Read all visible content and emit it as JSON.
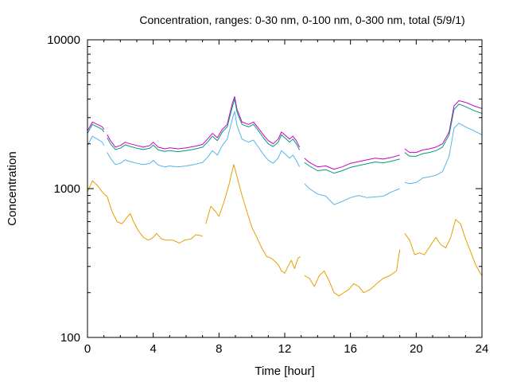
{
  "chart_data": {
    "type": "line",
    "title": "Concentration, ranges: 0-30 nm, 0-100 nm, 0-300 nm, total (5/9/1)",
    "xlabel": "Time [hour]",
    "ylabel": "Concentration",
    "xlim": [
      0,
      24
    ],
    "ylim": [
      100,
      10000
    ],
    "yscale": "log",
    "grid": false,
    "legend": "none",
    "x_ticks": [
      "0",
      "4",
      "8",
      "12",
      "16",
      "20",
      "24"
    ],
    "y_ticks": [
      "100",
      "1000",
      "10000"
    ],
    "series": [
      {
        "color": "#cc00cc",
        "points": [
          [
            0,
            2450
          ],
          [
            0.3,
            2800
          ],
          [
            0.6,
            2700
          ],
          [
            0.9,
            2600
          ],
          [
            1.0,
            2500
          ],
          [
            null,
            null
          ],
          [
            1.2,
            2300
          ],
          [
            1.4,
            2100
          ],
          [
            1.7,
            1900
          ],
          [
            2.0,
            1950
          ],
          [
            2.3,
            2050
          ],
          [
            2.6,
            2000
          ],
          [
            3.0,
            1950
          ],
          [
            3.4,
            1900
          ],
          [
            3.8,
            1950
          ],
          [
            4.0,
            2050
          ],
          [
            4.3,
            1900
          ],
          [
            4.7,
            1850
          ],
          [
            5.0,
            1880
          ],
          [
            5.5,
            1850
          ],
          [
            6.0,
            1880
          ],
          [
            6.5,
            1920
          ],
          [
            7.0,
            1980
          ],
          [
            7.3,
            2150
          ],
          [
            7.6,
            2350
          ],
          [
            7.9,
            2200
          ],
          [
            8.2,
            2500
          ],
          [
            8.5,
            2700
          ],
          [
            8.8,
            3700
          ],
          [
            8.95,
            4150
          ],
          [
            9.1,
            3400
          ],
          [
            9.4,
            2800
          ],
          [
            9.8,
            2700
          ],
          [
            10.1,
            2800
          ],
          [
            10.4,
            2550
          ],
          [
            10.7,
            2300
          ],
          [
            11.0,
            2100
          ],
          [
            11.3,
            2000
          ],
          [
            11.6,
            2150
          ],
          [
            11.8,
            2400
          ],
          [
            12.0,
            2300
          ],
          [
            12.3,
            2150
          ],
          [
            12.5,
            2250
          ],
          [
            12.7,
            2100
          ],
          [
            12.9,
            1900
          ],
          [
            null,
            null
          ],
          [
            13.2,
            1600
          ],
          [
            13.5,
            1500
          ],
          [
            14.0,
            1400
          ],
          [
            14.5,
            1420
          ],
          [
            15.0,
            1350
          ],
          [
            15.5,
            1400
          ],
          [
            16.0,
            1480
          ],
          [
            16.5,
            1520
          ],
          [
            17.0,
            1560
          ],
          [
            17.5,
            1600
          ],
          [
            18.0,
            1580
          ],
          [
            18.5,
            1620
          ],
          [
            19.0,
            1680
          ],
          [
            null,
            null
          ],
          [
            19.3,
            1850
          ],
          [
            19.6,
            1750
          ],
          [
            20.0,
            1750
          ],
          [
            20.4,
            1820
          ],
          [
            20.8,
            1850
          ],
          [
            21.2,
            1900
          ],
          [
            21.6,
            2000
          ],
          [
            22.0,
            2400
          ],
          [
            22.3,
            3600
          ],
          [
            22.6,
            3900
          ],
          [
            23.0,
            3800
          ],
          [
            23.5,
            3600
          ],
          [
            24.0,
            3450
          ]
        ]
      },
      {
        "color": "#009e73",
        "points": [
          [
            0,
            2350
          ],
          [
            0.3,
            2700
          ],
          [
            0.6,
            2600
          ],
          [
            0.9,
            2500
          ],
          [
            1.0,
            2400
          ],
          [
            null,
            null
          ],
          [
            1.2,
            2200
          ],
          [
            1.4,
            2000
          ],
          [
            1.7,
            1830
          ],
          [
            2.0,
            1870
          ],
          [
            2.3,
            1970
          ],
          [
            2.6,
            1920
          ],
          [
            3.0,
            1870
          ],
          [
            3.4,
            1830
          ],
          [
            3.8,
            1870
          ],
          [
            4.0,
            1960
          ],
          [
            4.3,
            1820
          ],
          [
            4.7,
            1780
          ],
          [
            5.0,
            1800
          ],
          [
            5.5,
            1770
          ],
          [
            6.0,
            1800
          ],
          [
            6.5,
            1840
          ],
          [
            7.0,
            1900
          ],
          [
            7.3,
            2050
          ],
          [
            7.6,
            2250
          ],
          [
            7.9,
            2100
          ],
          [
            8.2,
            2400
          ],
          [
            8.5,
            2600
          ],
          [
            8.8,
            3500
          ],
          [
            8.95,
            4000
          ],
          [
            9.1,
            3250
          ],
          [
            9.4,
            2700
          ],
          [
            9.8,
            2600
          ],
          [
            10.1,
            2700
          ],
          [
            10.4,
            2450
          ],
          [
            10.7,
            2200
          ],
          [
            11.0,
            2000
          ],
          [
            11.3,
            1920
          ],
          [
            11.6,
            2050
          ],
          [
            11.8,
            2300
          ],
          [
            12.0,
            2200
          ],
          [
            12.3,
            2050
          ],
          [
            12.5,
            2150
          ],
          [
            12.7,
            2000
          ],
          [
            12.9,
            1820
          ],
          [
            null,
            null
          ],
          [
            13.2,
            1500
          ],
          [
            13.5,
            1420
          ],
          [
            14.0,
            1320
          ],
          [
            14.5,
            1340
          ],
          [
            15.0,
            1270
          ],
          [
            15.5,
            1320
          ],
          [
            16.0,
            1390
          ],
          [
            16.5,
            1430
          ],
          [
            17.0,
            1470
          ],
          [
            17.5,
            1510
          ],
          [
            18.0,
            1490
          ],
          [
            18.5,
            1530
          ],
          [
            19.0,
            1580
          ],
          [
            null,
            null
          ],
          [
            19.3,
            1750
          ],
          [
            19.6,
            1650
          ],
          [
            20.0,
            1650
          ],
          [
            20.4,
            1720
          ],
          [
            20.8,
            1750
          ],
          [
            21.2,
            1800
          ],
          [
            21.6,
            1900
          ],
          [
            22.0,
            2300
          ],
          [
            22.3,
            3400
          ],
          [
            22.6,
            3700
          ],
          [
            23.0,
            3550
          ],
          [
            23.5,
            3350
          ],
          [
            24.0,
            3200
          ]
        ]
      },
      {
        "color": "#56b4e9",
        "points": [
          [
            0,
            1950
          ],
          [
            0.3,
            2250
          ],
          [
            0.6,
            2150
          ],
          [
            0.9,
            2050
          ],
          [
            1.0,
            1950
          ],
          [
            null,
            null
          ],
          [
            1.2,
            1750
          ],
          [
            1.4,
            1600
          ],
          [
            1.7,
            1450
          ],
          [
            2.0,
            1480
          ],
          [
            2.3,
            1560
          ],
          [
            2.6,
            1520
          ],
          [
            3.0,
            1480
          ],
          [
            3.4,
            1450
          ],
          [
            3.8,
            1480
          ],
          [
            4.0,
            1550
          ],
          [
            4.3,
            1440
          ],
          [
            4.7,
            1400
          ],
          [
            5.0,
            1420
          ],
          [
            5.5,
            1400
          ],
          [
            6.0,
            1420
          ],
          [
            6.5,
            1450
          ],
          [
            7.0,
            1500
          ],
          [
            7.3,
            1620
          ],
          [
            7.6,
            1800
          ],
          [
            7.9,
            1680
          ],
          [
            8.2,
            1950
          ],
          [
            8.5,
            2150
          ],
          [
            8.8,
            2900
          ],
          [
            8.95,
            3300
          ],
          [
            9.1,
            2650
          ],
          [
            9.4,
            2150
          ],
          [
            9.8,
            2050
          ],
          [
            10.1,
            2120
          ],
          [
            10.4,
            1900
          ],
          [
            10.7,
            1700
          ],
          [
            11.0,
            1550
          ],
          [
            11.3,
            1480
          ],
          [
            11.6,
            1600
          ],
          [
            11.8,
            1800
          ],
          [
            12.0,
            1720
          ],
          [
            12.3,
            1600
          ],
          [
            12.5,
            1680
          ],
          [
            12.7,
            1550
          ],
          [
            12.9,
            1400
          ],
          [
            null,
            null
          ],
          [
            13.2,
            1080
          ],
          [
            13.5,
            1000
          ],
          [
            14.0,
            920
          ],
          [
            14.5,
            890
          ],
          [
            15.0,
            780
          ],
          [
            15.5,
            820
          ],
          [
            16.0,
            870
          ],
          [
            16.5,
            900
          ],
          [
            17.0,
            870
          ],
          [
            17.5,
            880
          ],
          [
            18.0,
            890
          ],
          [
            18.5,
            950
          ],
          [
            19.0,
            1000
          ],
          [
            null,
            null
          ],
          [
            19.3,
            1100
          ],
          [
            19.6,
            1080
          ],
          [
            20.0,
            1100
          ],
          [
            20.4,
            1180
          ],
          [
            20.8,
            1200
          ],
          [
            21.2,
            1230
          ],
          [
            21.6,
            1300
          ],
          [
            22.0,
            1650
          ],
          [
            22.3,
            2550
          ],
          [
            22.6,
            2750
          ],
          [
            23.0,
            2600
          ],
          [
            23.5,
            2450
          ],
          [
            24.0,
            2300
          ]
        ]
      },
      {
        "color": "#e69f00",
        "points": [
          [
            0,
            950
          ],
          [
            0.3,
            1130
          ],
          [
            0.6,
            1050
          ],
          [
            0.9,
            950
          ],
          [
            1.2,
            880
          ],
          [
            1.5,
            700
          ],
          [
            1.8,
            600
          ],
          [
            2.1,
            580
          ],
          [
            2.4,
            640
          ],
          [
            2.6,
            680
          ],
          [
            2.8,
            600
          ],
          [
            3.1,
            520
          ],
          [
            3.4,
            470
          ],
          [
            3.7,
            450
          ],
          [
            4.0,
            470
          ],
          [
            4.2,
            500
          ],
          [
            4.5,
            460
          ],
          [
            4.8,
            450
          ],
          [
            5.2,
            450
          ],
          [
            5.6,
            430
          ],
          [
            5.9,
            450
          ],
          [
            6.3,
            460
          ],
          [
            6.6,
            490
          ],
          [
            7.0,
            480
          ],
          [
            null,
            null
          ],
          [
            7.2,
            580
          ],
          [
            7.5,
            760
          ],
          [
            7.8,
            700
          ],
          [
            8.0,
            650
          ],
          [
            8.3,
            810
          ],
          [
            8.6,
            1050
          ],
          [
            8.9,
            1450
          ],
          [
            9.1,
            1200
          ],
          [
            9.4,
            900
          ],
          [
            9.7,
            700
          ],
          [
            10.0,
            550
          ],
          [
            10.3,
            470
          ],
          [
            10.6,
            400
          ],
          [
            10.9,
            350
          ],
          [
            11.2,
            340
          ],
          [
            11.6,
            310
          ],
          [
            11.8,
            280
          ],
          [
            12.0,
            270
          ],
          [
            12.2,
            300
          ],
          [
            12.4,
            330
          ],
          [
            12.6,
            290
          ],
          [
            12.8,
            340
          ],
          [
            12.95,
            350
          ],
          [
            null,
            null
          ],
          [
            13.2,
            260
          ],
          [
            13.5,
            250
          ],
          [
            13.8,
            220
          ],
          [
            14.1,
            260
          ],
          [
            14.4,
            280
          ],
          [
            14.7,
            240
          ],
          [
            15.0,
            200
          ],
          [
            15.3,
            190
          ],
          [
            15.6,
            200
          ],
          [
            15.9,
            210
          ],
          [
            16.2,
            230
          ],
          [
            16.5,
            220
          ],
          [
            16.8,
            200
          ],
          [
            17.2,
            210
          ],
          [
            17.6,
            230
          ],
          [
            18.0,
            250
          ],
          [
            18.4,
            260
          ],
          [
            18.8,
            280
          ],
          [
            19.0,
            390
          ],
          [
            null,
            null
          ],
          [
            19.3,
            500
          ],
          [
            19.6,
            450
          ],
          [
            19.9,
            360
          ],
          [
            20.2,
            370
          ],
          [
            20.5,
            360
          ],
          [
            20.9,
            420
          ],
          [
            21.2,
            470
          ],
          [
            21.5,
            420
          ],
          [
            21.8,
            400
          ],
          [
            22.1,
            470
          ],
          [
            22.4,
            620
          ],
          [
            22.7,
            580
          ],
          [
            23.0,
            460
          ],
          [
            23.3,
            380
          ],
          [
            23.6,
            310
          ],
          [
            23.9,
            270
          ],
          [
            24.0,
            260
          ]
        ]
      }
    ]
  }
}
